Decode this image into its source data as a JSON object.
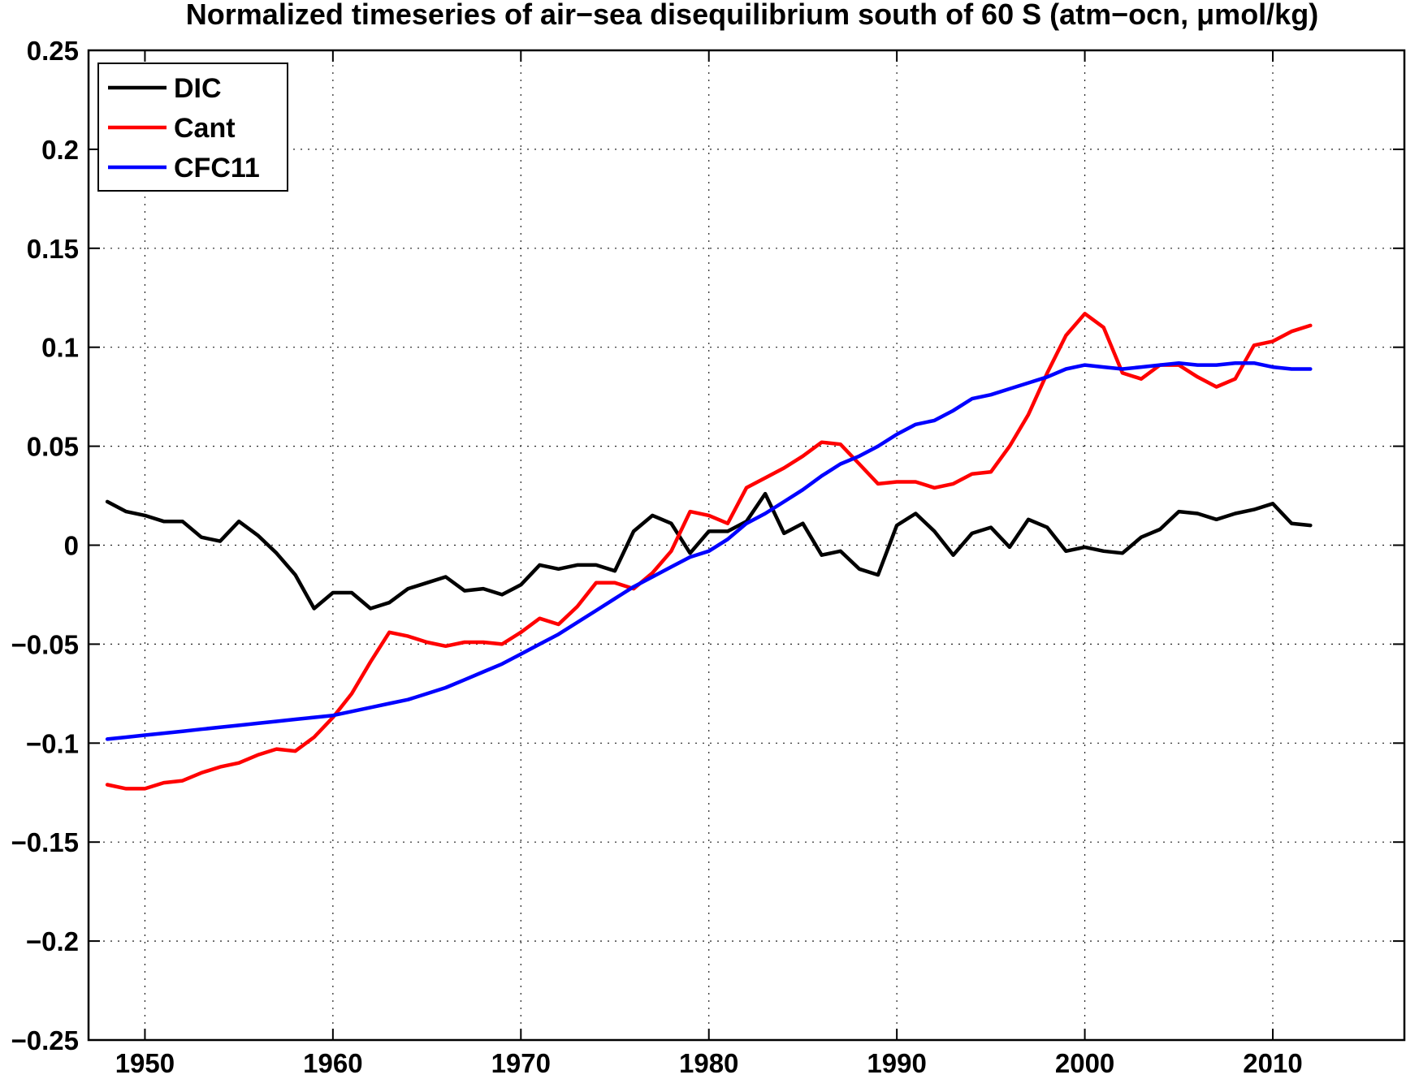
{
  "chart_data": {
    "type": "line",
    "title": "Normalized timeseries of air−sea disequilibrium  south of 60 S (atm−ocn, μmol/kg)",
    "xlabel": "",
    "ylabel": "",
    "xlim": [
      1947,
      2017
    ],
    "ylim": [
      -0.25,
      0.25
    ],
    "x_ticks": [
      1950,
      1960,
      1970,
      1980,
      1990,
      2000,
      2010
    ],
    "x_tick_labels": [
      "1950",
      "1960",
      "1970",
      "1980",
      "1990",
      "2000",
      "2010"
    ],
    "y_ticks": [
      0.25,
      0.2,
      0.15,
      0.1,
      0.05,
      0,
      -0.05,
      -0.1,
      -0.15,
      -0.2,
      -0.25
    ],
    "y_tick_labels": [
      "0.25",
      "0.2",
      "0.15",
      "0.1",
      "0.05",
      "0",
      "−0.05",
      "−0.1",
      "−0.15",
      "−0.2",
      "−0.25"
    ],
    "grid": true,
    "legend_position": "top-left",
    "x": [
      1948,
      1949,
      1950,
      1951,
      1952,
      1953,
      1954,
      1955,
      1956,
      1957,
      1958,
      1959,
      1960,
      1961,
      1962,
      1963,
      1964,
      1965,
      1966,
      1967,
      1968,
      1969,
      1970,
      1971,
      1972,
      1973,
      1974,
      1975,
      1976,
      1977,
      1978,
      1979,
      1980,
      1981,
      1982,
      1983,
      1984,
      1985,
      1986,
      1987,
      1988,
      1989,
      1990,
      1991,
      1992,
      1993,
      1994,
      1995,
      1996,
      1997,
      1998,
      1999,
      2000,
      2001,
      2002,
      2003,
      2004,
      2005,
      2006,
      2007,
      2008,
      2009,
      2010,
      2011,
      2012
    ],
    "series": [
      {
        "name": "DIC",
        "color": "#000000",
        "values": [
          0.022,
          0.017,
          0.015,
          0.012,
          0.012,
          0.004,
          0.002,
          0.012,
          0.005,
          -0.004,
          -0.015,
          -0.032,
          -0.024,
          -0.024,
          -0.032,
          -0.029,
          -0.022,
          -0.019,
          -0.016,
          -0.023,
          -0.022,
          -0.025,
          -0.02,
          -0.01,
          -0.012,
          -0.01,
          -0.01,
          -0.013,
          0.007,
          0.015,
          0.011,
          -0.004,
          0.007,
          0.007,
          0.012,
          0.026,
          0.006,
          0.011,
          -0.005,
          -0.003,
          -0.012,
          -0.015,
          0.01,
          0.016,
          0.007,
          -0.005,
          0.006,
          0.009,
          -0.001,
          0.013,
          0.009,
          -0.003,
          -0.001,
          -0.003,
          -0.004,
          0.004,
          0.008,
          0.017,
          0.016,
          0.013,
          0.016,
          0.018,
          0.021,
          0.011,
          0.01
        ]
      },
      {
        "name": "Cant",
        "color": "#ff0000",
        "values": [
          -0.121,
          -0.123,
          -0.123,
          -0.12,
          -0.119,
          -0.115,
          -0.112,
          -0.11,
          -0.106,
          -0.103,
          -0.104,
          -0.097,
          -0.087,
          -0.075,
          -0.059,
          -0.044,
          -0.046,
          -0.049,
          -0.051,
          -0.049,
          -0.049,
          -0.05,
          -0.044,
          -0.037,
          -0.04,
          -0.031,
          -0.019,
          -0.019,
          -0.022,
          -0.014,
          -0.003,
          0.017,
          0.015,
          0.011,
          0.029,
          0.034,
          0.039,
          0.045,
          0.052,
          0.051,
          0.041,
          0.031,
          0.032,
          0.032,
          0.029,
          0.031,
          0.036,
          0.037,
          0.05,
          0.066,
          0.087,
          0.106,
          0.117,
          0.11,
          0.087,
          0.084,
          0.091,
          0.091,
          0.085,
          0.08,
          0.084,
          0.101,
          0.103,
          0.108,
          0.111
        ]
      },
      {
        "name": "CFC11",
        "color": "#0000ff",
        "values": [
          -0.098,
          -0.097,
          -0.096,
          -0.095,
          -0.094,
          -0.093,
          -0.092,
          -0.091,
          -0.09,
          -0.089,
          -0.088,
          -0.087,
          -0.086,
          -0.084,
          -0.082,
          -0.08,
          -0.078,
          -0.075,
          -0.072,
          -0.068,
          -0.064,
          -0.06,
          -0.055,
          -0.05,
          -0.045,
          -0.039,
          -0.033,
          -0.027,
          -0.021,
          -0.016,
          -0.011,
          -0.006,
          -0.003,
          0.003,
          0.011,
          0.016,
          0.022,
          0.028,
          0.035,
          0.041,
          0.045,
          0.05,
          0.056,
          0.061,
          0.063,
          0.068,
          0.074,
          0.076,
          0.079,
          0.082,
          0.085,
          0.089,
          0.091,
          0.09,
          0.089,
          0.09,
          0.091,
          0.092,
          0.091,
          0.091,
          0.092,
          0.092,
          0.09,
          0.089,
          0.089
        ]
      }
    ]
  }
}
